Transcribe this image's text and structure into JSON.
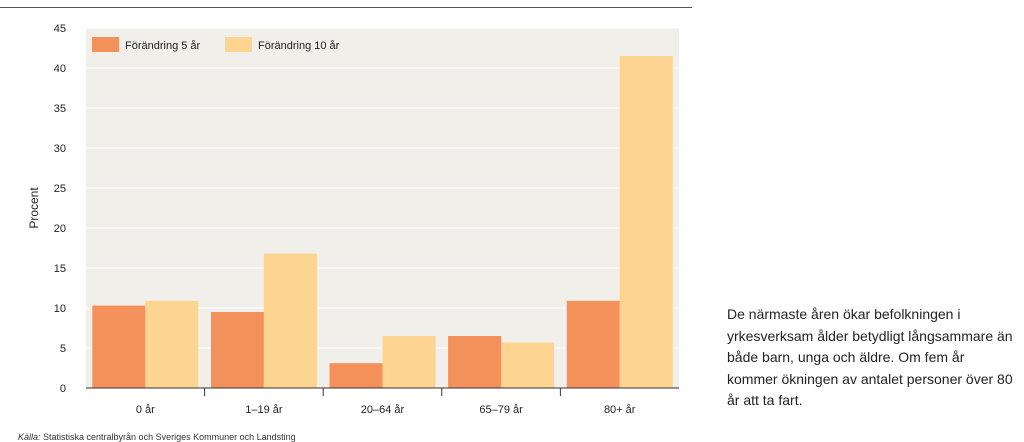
{
  "chart_data": {
    "type": "bar",
    "categories": [
      "0 år",
      "1–19 år",
      "20–64 år",
      "65–79 år",
      "80+ år"
    ],
    "series": [
      {
        "name": "Förändring 5 år",
        "values": [
          10.3,
          9.5,
          3.1,
          6.5,
          10.9
        ]
      },
      {
        "name": "Förändring 10 år",
        "values": [
          10.9,
          16.8,
          6.5,
          5.7,
          41.5
        ]
      }
    ],
    "ylabel": "Procent",
    "ylim": [
      0,
      45
    ],
    "yticks": [
      0,
      5,
      10,
      15,
      20,
      25,
      30,
      35,
      40,
      45
    ],
    "legend_position": "top-left",
    "colors": {
      "series": [
        "#f4905a",
        "#fdd490"
      ],
      "plot_background": "#f1efe9",
      "axis": "#333333"
    }
  },
  "caption": "De närmaste åren ökar befolkningen i yrkesverksam ålder betydligt långsammare än både barn, unga och äldre. Om fem år kommer ökningen av antalet personer över 80 år att ta fart.",
  "source": {
    "label": "Källa:",
    "text": " Statistiska centralbyrån och Sveriges Kommuner och Landsting"
  }
}
